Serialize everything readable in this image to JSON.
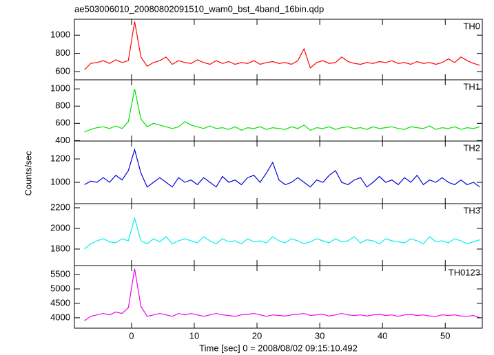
{
  "chart_data": [
    {
      "type": "line",
      "title": "ae503006010_20080802091510_wam0_bst_4band_16bin.qdp",
      "label": "TH0",
      "color": "#ff0000",
      "xlim": [
        -9.1,
        55.9
      ],
      "ylim": [
        510,
        1175
      ],
      "yticks": [
        600,
        800,
        1000
      ],
      "x": [
        -7.5,
        -6.5,
        -5.5,
        -4.5,
        -3.5,
        -2.5,
        -1.5,
        -0.5,
        0.5,
        1.5,
        2.5,
        3.5,
        4.5,
        5.5,
        6.5,
        7.5,
        8.5,
        9.5,
        10.5,
        11.5,
        12.5,
        13.5,
        14.5,
        15.5,
        16.5,
        17.5,
        18.5,
        19.5,
        20.5,
        21.5,
        22.5,
        23.5,
        24.5,
        25.5,
        26.5,
        27.5,
        28.5,
        29.5,
        30.5,
        31.5,
        32.5,
        33.5,
        34.5,
        35.5,
        36.5,
        37.5,
        38.5,
        39.5,
        40.5,
        41.5,
        42.5,
        43.5,
        44.5,
        45.5,
        46.5,
        47.5,
        48.5,
        49.5,
        50.5,
        51.5,
        52.5,
        53.5,
        54.5,
        55.5
      ],
      "values": [
        620,
        690,
        700,
        720,
        690,
        730,
        700,
        720,
        1150,
        760,
        660,
        700,
        720,
        760,
        680,
        720,
        700,
        690,
        730,
        700,
        680,
        720,
        690,
        710,
        680,
        700,
        690,
        720,
        680,
        700,
        710,
        690,
        700,
        680,
        720,
        850,
        640,
        700,
        720,
        690,
        700,
        760,
        710,
        690,
        680,
        700,
        690,
        710,
        700,
        720,
        690,
        700,
        680,
        710,
        690,
        700,
        680,
        700,
        740,
        700,
        760,
        720,
        690,
        670
      ]
    },
    {
      "type": "line",
      "label": "TH1",
      "color": "#00e000",
      "xlim": [
        -9.1,
        55.9
      ],
      "ylim": [
        395,
        1105
      ],
      "yticks": [
        400,
        600,
        800,
        1000
      ],
      "x": [
        -7.5,
        -6.5,
        -5.5,
        -4.5,
        -3.5,
        -2.5,
        -1.5,
        -0.5,
        0.5,
        1.5,
        2.5,
        3.5,
        4.5,
        5.5,
        6.5,
        7.5,
        8.5,
        9.5,
        10.5,
        11.5,
        12.5,
        13.5,
        14.5,
        15.5,
        16.5,
        17.5,
        18.5,
        19.5,
        20.5,
        21.5,
        22.5,
        23.5,
        24.5,
        25.5,
        26.5,
        27.5,
        28.5,
        29.5,
        30.5,
        31.5,
        32.5,
        33.5,
        34.5,
        35.5,
        36.5,
        37.5,
        38.5,
        39.5,
        40.5,
        41.5,
        42.5,
        43.5,
        44.5,
        45.5,
        46.5,
        47.5,
        48.5,
        49.5,
        50.5,
        51.5,
        52.5,
        53.5,
        54.5,
        55.5
      ],
      "values": [
        500,
        530,
        550,
        560,
        540,
        570,
        540,
        620,
        1000,
        650,
        560,
        600,
        580,
        560,
        540,
        560,
        620,
        580,
        560,
        540,
        570,
        540,
        550,
        530,
        560,
        520,
        550,
        540,
        560,
        530,
        550,
        540,
        530,
        560,
        540,
        580,
        520,
        550,
        540,
        560,
        530,
        550,
        560,
        540,
        550,
        530,
        560,
        540,
        550,
        560,
        540,
        530,
        560,
        550,
        540,
        570,
        530,
        550,
        540,
        560,
        530,
        550,
        540,
        560
      ]
    },
    {
      "type": "line",
      "label": "TH2",
      "color": "#0000e0",
      "y_label": "Counts/sec",
      "xlim": [
        -9.1,
        55.9
      ],
      "ylim": [
        818,
        1353
      ],
      "yticks": [
        1000,
        1200
      ],
      "x": [
        -7.5,
        -6.5,
        -5.5,
        -4.5,
        -3.5,
        -2.5,
        -1.5,
        -0.5,
        0.5,
        1.5,
        2.5,
        3.5,
        4.5,
        5.5,
        6.5,
        7.5,
        8.5,
        9.5,
        10.5,
        11.5,
        12.5,
        13.5,
        14.5,
        15.5,
        16.5,
        17.5,
        18.5,
        19.5,
        20.5,
        21.5,
        22.5,
        23.5,
        24.5,
        25.5,
        26.5,
        27.5,
        28.5,
        29.5,
        30.5,
        31.5,
        32.5,
        33.5,
        34.5,
        35.5,
        36.5,
        37.5,
        38.5,
        39.5,
        40.5,
        41.5,
        42.5,
        43.5,
        44.5,
        45.5,
        46.5,
        47.5,
        48.5,
        49.5,
        50.5,
        51.5,
        52.5,
        53.5,
        54.5,
        55.5
      ],
      "values": [
        980,
        1010,
        1000,
        1040,
        1000,
        1060,
        1020,
        1100,
        1280,
        1080,
        960,
        1000,
        1040,
        1000,
        960,
        1040,
        1000,
        1020,
        980,
        1040,
        1000,
        960,
        1050,
        1000,
        1020,
        980,
        1040,
        1060,
        1000,
        1080,
        1170,
        1020,
        980,
        1000,
        1040,
        1000,
        960,
        1020,
        1000,
        1060,
        1100,
        1000,
        980,
        1020,
        1040,
        960,
        1000,
        1050,
        1000,
        1020,
        980,
        1040,
        1000,
        1060,
        980,
        1020,
        1000,
        1040,
        1000,
        980,
        1020,
        980,
        1000,
        960
      ]
    },
    {
      "type": "line",
      "label": "TH3",
      "color": "#00f0f0",
      "xlim": [
        -9.1,
        55.9
      ],
      "ylim": [
        1640,
        2240
      ],
      "yticks": [
        1800,
        2000,
        2200
      ],
      "x": [
        -7.5,
        -6.5,
        -5.5,
        -4.5,
        -3.5,
        -2.5,
        -1.5,
        -0.5,
        0.5,
        1.5,
        2.5,
        3.5,
        4.5,
        5.5,
        6.5,
        7.5,
        8.5,
        9.5,
        10.5,
        11.5,
        12.5,
        13.5,
        14.5,
        15.5,
        16.5,
        17.5,
        18.5,
        19.5,
        20.5,
        21.5,
        22.5,
        23.5,
        24.5,
        25.5,
        26.5,
        27.5,
        28.5,
        29.5,
        30.5,
        31.5,
        32.5,
        33.5,
        34.5,
        35.5,
        36.5,
        37.5,
        38.5,
        39.5,
        40.5,
        41.5,
        42.5,
        43.5,
        44.5,
        45.5,
        46.5,
        47.5,
        48.5,
        49.5,
        50.5,
        51.5,
        52.5,
        53.5,
        54.5,
        55.5
      ],
      "values": [
        1800,
        1850,
        1880,
        1900,
        1870,
        1860,
        1900,
        1880,
        2100,
        1880,
        1850,
        1900,
        1870,
        1920,
        1850,
        1880,
        1900,
        1880,
        1860,
        1920,
        1880,
        1850,
        1900,
        1870,
        1880,
        1850,
        1900,
        1870,
        1880,
        1860,
        1920,
        1880,
        1860,
        1900,
        1880,
        1850,
        1870,
        1900,
        1880,
        1860,
        1900,
        1870,
        1880,
        1920,
        1860,
        1890,
        1880,
        1850,
        1900,
        1880,
        1870,
        1860,
        1900,
        1880,
        1850,
        1920,
        1870,
        1880,
        1860,
        1900,
        1880,
        1850,
        1870,
        1890
      ]
    },
    {
      "type": "line",
      "label": "TH0123",
      "color": "#f000f0",
      "x_label": "Time [sec] 0 = 2008/08/02 09:15:10.492",
      "xlim": [
        -9.1,
        55.9
      ],
      "xticks": [
        0,
        10,
        20,
        30,
        40,
        50
      ],
      "ylim": [
        3640,
        5810
      ],
      "yticks": [
        4000,
        4500,
        5000,
        5500
      ],
      "x": [
        -7.5,
        -6.5,
        -5.5,
        -4.5,
        -3.5,
        -2.5,
        -1.5,
        -0.5,
        0.5,
        1.5,
        2.5,
        3.5,
        4.5,
        5.5,
        6.5,
        7.5,
        8.5,
        9.5,
        10.5,
        11.5,
        12.5,
        13.5,
        14.5,
        15.5,
        16.5,
        17.5,
        18.5,
        19.5,
        20.5,
        21.5,
        22.5,
        23.5,
        24.5,
        25.5,
        26.5,
        27.5,
        28.5,
        29.5,
        30.5,
        31.5,
        32.5,
        33.5,
        34.5,
        35.5,
        36.5,
        37.5,
        38.5,
        39.5,
        40.5,
        41.5,
        42.5,
        43.5,
        44.5,
        45.5,
        46.5,
        47.5,
        48.5,
        49.5,
        50.5,
        51.5,
        52.5,
        53.5,
        54.5,
        55.5
      ],
      "values": [
        3900,
        4050,
        4100,
        4150,
        4100,
        4200,
        4150,
        4350,
        5700,
        4400,
        4050,
        4100,
        4150,
        4100,
        4050,
        4150,
        4100,
        4150,
        4100,
        4050,
        4100,
        4150,
        4100,
        4080,
        4050,
        4100,
        4120,
        4150,
        4100,
        4050,
        4100,
        4080,
        4060,
        4100,
        4120,
        4150,
        4080,
        4100,
        4120,
        4060,
        4100,
        4150,
        4100,
        4080,
        4100,
        4060,
        4100,
        4120,
        4080,
        4100,
        4050,
        4100,
        4120,
        4080,
        4100,
        4060,
        4050,
        4100,
        4080,
        4100,
        4060,
        4050,
        4080,
        4000
      ]
    }
  ]
}
